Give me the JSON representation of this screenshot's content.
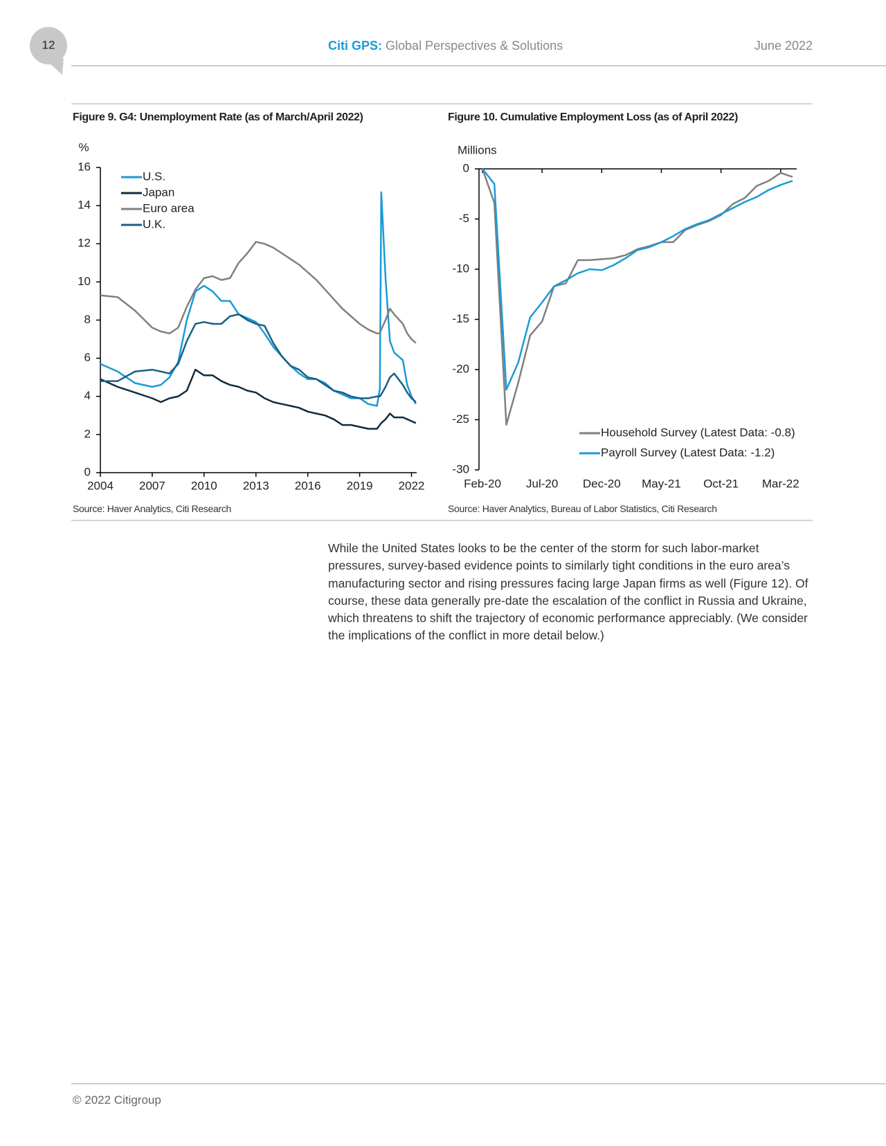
{
  "header": {
    "page_number": "12",
    "brand": "Citi GPS:",
    "publication": "Global Perspectives & Solutions",
    "date": "June 2022"
  },
  "chart_data": [
    {
      "type": "line",
      "title": "Figure 9. G4: Unemployment Rate (as of March/April 2022)",
      "y_label": "%",
      "x": [
        2004,
        2005,
        2006,
        2007,
        2007.5,
        2008,
        2008.5,
        2009,
        2009.5,
        2010,
        2010.5,
        2011,
        2011.5,
        2012,
        2012.5,
        2013,
        2013.5,
        2014,
        2014.5,
        2015,
        2015.5,
        2016,
        2016.5,
        2017,
        2017.5,
        2018,
        2018.5,
        2019,
        2019.5,
        2020,
        2020.17,
        2020.25,
        2020.5,
        2020.75,
        2021,
        2021.5,
        2021.75,
        2022,
        2022.25
      ],
      "xlim": [
        2004,
        2022.3
      ],
      "xticks": [
        2004,
        2007,
        2010,
        2013,
        2016,
        2019,
        2022
      ],
      "ylim": [
        0,
        16
      ],
      "yticks": [
        0,
        2,
        4,
        6,
        8,
        10,
        12,
        14,
        16
      ],
      "legend": "upper left",
      "series": [
        {
          "name": "U.S.",
          "color": "#1a9ad6",
          "values": [
            5.7,
            5.3,
            4.7,
            4.5,
            4.6,
            5.0,
            5.8,
            8.0,
            9.5,
            9.8,
            9.5,
            9.0,
            9.0,
            8.3,
            8.1,
            7.9,
            7.3,
            6.6,
            6.1,
            5.6,
            5.2,
            4.9,
            4.9,
            4.7,
            4.3,
            4.1,
            3.9,
            3.9,
            3.6,
            3.5,
            4.4,
            14.7,
            10.2,
            6.9,
            6.3,
            5.9,
            4.6,
            4.0,
            3.6
          ]
        },
        {
          "name": "Japan",
          "color": "#0d2c40",
          "values": [
            4.9,
            4.5,
            4.2,
            3.9,
            3.7,
            3.9,
            4.0,
            4.3,
            5.4,
            5.1,
            5.1,
            4.8,
            4.6,
            4.5,
            4.3,
            4.2,
            3.9,
            3.7,
            3.6,
            3.5,
            3.4,
            3.2,
            3.1,
            3.0,
            2.8,
            2.5,
            2.5,
            2.4,
            2.3,
            2.3,
            2.5,
            2.6,
            2.8,
            3.1,
            2.9,
            2.9,
            2.8,
            2.7,
            2.6
          ]
        },
        {
          "name": "Euro area",
          "color": "#808080",
          "values": [
            9.3,
            9.2,
            8.5,
            7.6,
            7.4,
            7.3,
            7.6,
            8.7,
            9.6,
            10.2,
            10.3,
            10.1,
            10.2,
            11.0,
            11.5,
            12.1,
            12.0,
            11.8,
            11.5,
            11.2,
            10.9,
            10.5,
            10.1,
            9.6,
            9.1,
            8.6,
            8.2,
            7.8,
            7.5,
            7.3,
            7.3,
            7.5,
            8.0,
            8.6,
            8.3,
            7.8,
            7.3,
            7.0,
            6.8
          ]
        },
        {
          "name": "U.K.",
          "color": "#1b5f83",
          "values": [
            4.8,
            4.8,
            5.3,
            5.4,
            5.3,
            5.2,
            5.7,
            6.9,
            7.8,
            7.9,
            7.8,
            7.8,
            8.2,
            8.3,
            8.0,
            7.8,
            7.7,
            6.8,
            6.1,
            5.6,
            5.4,
            5.0,
            4.9,
            4.6,
            4.3,
            4.2,
            4.0,
            3.9,
            3.9,
            4.0,
            4.0,
            4.1,
            4.5,
            5.0,
            5.2,
            4.6,
            4.2,
            3.9,
            3.7
          ]
        }
      ],
      "source": "Source: Haver Analytics, Citi Research"
    },
    {
      "type": "line",
      "title": "Figure 10. Cumulative Employment Loss (as of April 2022)",
      "y_label": "Millions",
      "categories": [
        "Feb-20",
        null,
        null,
        null,
        null,
        "Jul-20",
        null,
        null,
        null,
        null,
        "Dec-20",
        null,
        null,
        null,
        null,
        "May-21",
        null,
        null,
        null,
        null,
        "Oct-21",
        null,
        null,
        null,
        null,
        "Mar-22",
        null
      ],
      "ylim": [
        -30,
        0
      ],
      "yticks": [
        -30,
        -25,
        -20,
        -15,
        -10,
        -5,
        0
      ],
      "legend": "lower right",
      "series": [
        {
          "name": "Household Survey (Latest Data: -0.8)",
          "color": "#7f7f7f",
          "values": [
            0,
            -3.4,
            -25.5,
            -21.3,
            -16.6,
            -15.2,
            -11.7,
            -11.4,
            -9.1,
            -9.1,
            -9.0,
            -8.9,
            -8.6,
            -8.0,
            -7.7,
            -7.3,
            -7.3,
            -6.1,
            -5.6,
            -5.2,
            -4.6,
            -3.5,
            -2.9,
            -1.7,
            -1.2,
            -0.4,
            -0.8
          ]
        },
        {
          "name": "Payroll Survey (Latest Data: -1.2)",
          "color": "#1a9ad6",
          "values": [
            0,
            -1.5,
            -22.0,
            -19.3,
            -14.8,
            -13.3,
            -11.7,
            -11.1,
            -10.4,
            -10.0,
            -10.1,
            -9.6,
            -8.9,
            -8.1,
            -7.8,
            -7.3,
            -6.7,
            -6.0,
            -5.5,
            -5.1,
            -4.5,
            -3.9,
            -3.3,
            -2.8,
            -2.1,
            -1.6,
            -1.2
          ]
        }
      ],
      "source": "Source: Haver Analytics, Bureau of Labor Statistics, Citi Research"
    }
  ],
  "body": {
    "paragraph": "While the United States looks to be the center of the storm for such labor-market pressures, survey-based evidence points to similarly tight conditions in the euro area’s manufacturing sector and rising pressures facing large Japan firms as well (Figure 12). Of course, these data generally pre-date the escalation of the conflict in Russia and Ukraine, which threatens to shift the trajectory of economic performance appreciably.  (We consider the implications of the conflict in more detail below.)"
  },
  "footer": {
    "copyright": "© 2022 Citigroup"
  }
}
